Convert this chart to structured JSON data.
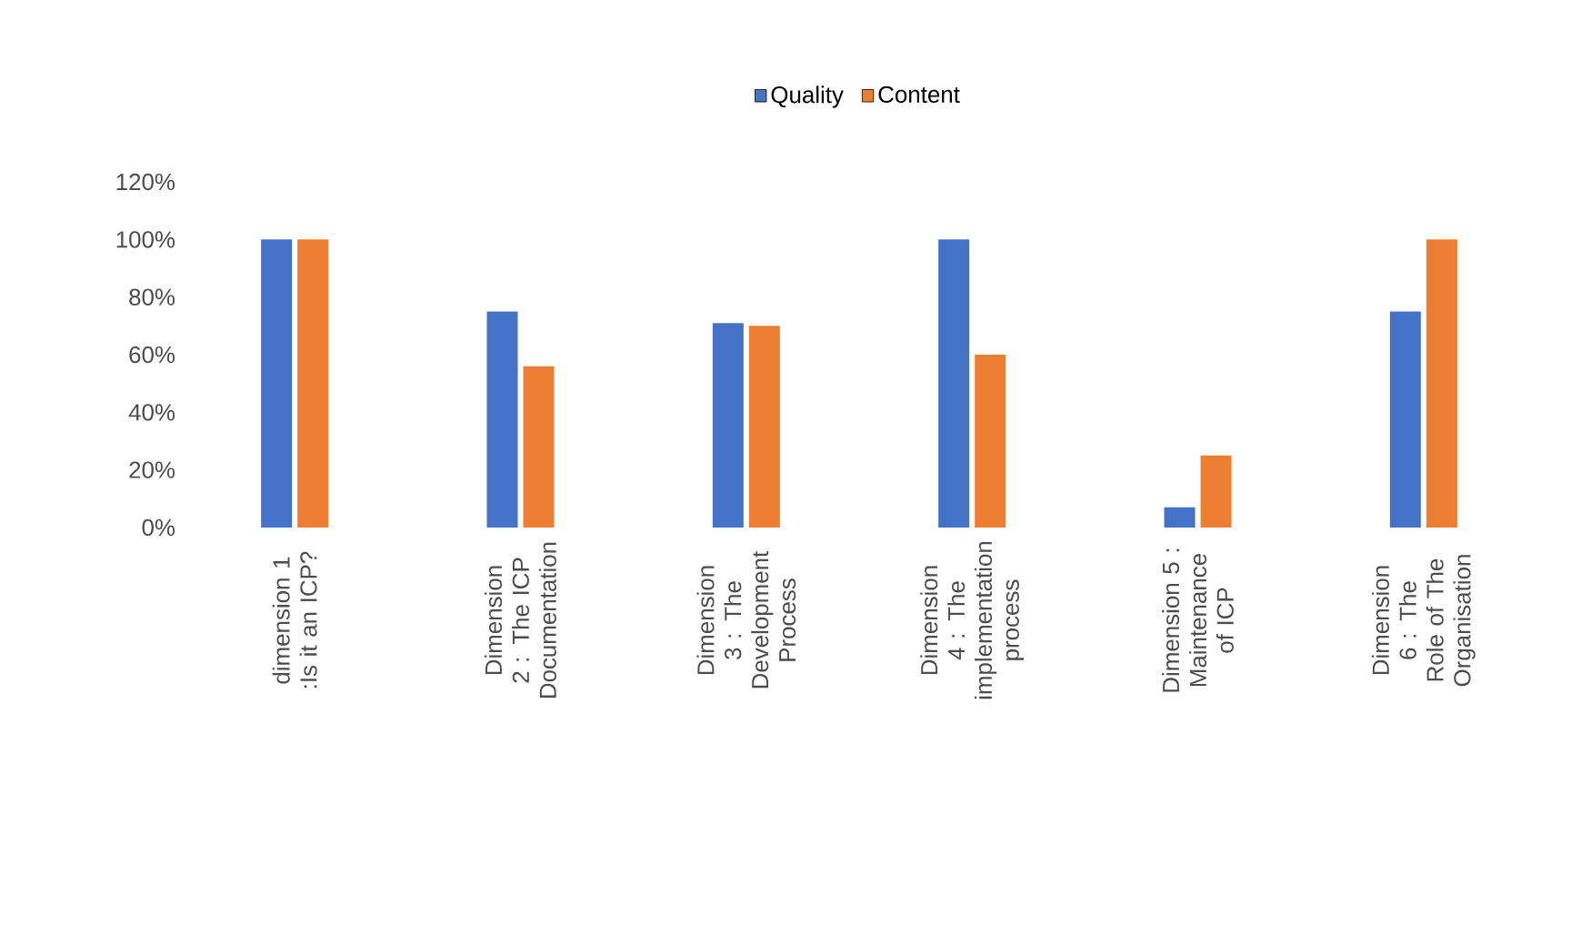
{
  "chart_data": {
    "type": "bar",
    "categories": [
      "dimension 1 :Is it an ICP?",
      "Dimension 2 : The ICP Documentation",
      "Dimension 3 : The Development Process",
      "Dimension 4 : The implementation process",
      "Dimension 5 : Maintenance of ICP",
      "Dimension 6 : The Role of The Organisation"
    ],
    "series": [
      {
        "name": "Quality",
        "color": "#4472c4",
        "values": [
          100,
          75,
          71,
          100,
          7,
          75
        ]
      },
      {
        "name": "Content",
        "color": "#ed7d31",
        "values": [
          100,
          56,
          70,
          60,
          25,
          100
        ]
      }
    ],
    "ylim": [
      0,
      120
    ],
    "yticks": [
      {
        "value": 0,
        "label": "0%"
      },
      {
        "value": 20,
        "label": "20%"
      },
      {
        "value": 40,
        "label": "40%"
      },
      {
        "value": 60,
        "label": "60%"
      },
      {
        "value": 80,
        "label": "80%"
      },
      {
        "value": 100,
        "label": "100%"
      },
      {
        "value": 120,
        "label": "120%"
      }
    ],
    "grid": false,
    "legend": "top"
  }
}
